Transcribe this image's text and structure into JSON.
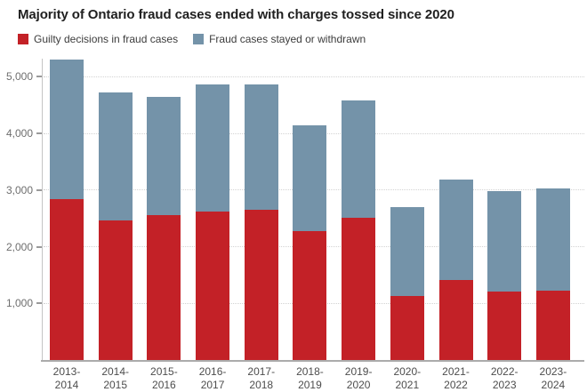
{
  "chart": {
    "title": "Majority of Ontario fraud cases ended with charges tossed since 2020",
    "legend": [
      {
        "label": "Guilty decisions in fraud cases",
        "color": "#c32127"
      },
      {
        "label": "Fraud cases stayed or withdrawn",
        "color": "#7493a9"
      }
    ]
  },
  "chart_data": {
    "type": "bar",
    "stacked": true,
    "title": "Majority of Ontario fraud cases ended with charges tossed since 2020",
    "categories": [
      "2013-2014",
      "2014-2015",
      "2015-2016",
      "2016-2017",
      "2017-2018",
      "2018-2019",
      "2019-2020",
      "2020-2021",
      "2021-2022",
      "2022-2023",
      "2023-2024"
    ],
    "x_tick_labels": [
      "2013-\n2014",
      "2014-\n2015",
      "2015-\n2016",
      "2016-\n2017",
      "2017-\n2018",
      "2018-\n2019",
      "2019-\n2020",
      "2020-\n2021",
      "2021-\n2022",
      "2022-\n2023",
      "2023-\n2024"
    ],
    "series": [
      {
        "name": "Guilty decisions in fraud cases",
        "color": "#c32127",
        "values": [
          2840,
          2470,
          2560,
          2620,
          2650,
          2270,
          2510,
          1130,
          1410,
          1210,
          1230
        ]
      },
      {
        "name": "Fraud cases stayed or withdrawn",
        "color": "#7493a9",
        "values": [
          2460,
          2250,
          2080,
          2240,
          2210,
          1870,
          2070,
          1570,
          1770,
          1780,
          1800
        ]
      }
    ],
    "totals": [
      5300,
      4720,
      4640,
      4860,
      4860,
      4140,
      4580,
      2700,
      3180,
      2990,
      3030
    ],
    "yticks": [
      {
        "value": 1000,
        "label": "1,000"
      },
      {
        "value": 2000,
        "label": "2,000"
      },
      {
        "value": 3000,
        "label": "3,000"
      },
      {
        "value": 4000,
        "label": "4,000"
      },
      {
        "value": 5000,
        "label": "5,000"
      }
    ],
    "xlabel": "",
    "ylabel": "",
    "ylim": [
      0,
      5320
    ],
    "grid": "horizontal-dotted",
    "legend_position": "top-left"
  },
  "colors": {
    "guilty_red": "#c32127",
    "stayed_blue": "#7493a9",
    "gridline": "#d2d2d2",
    "y_axis_line": "#c4c4c4",
    "baseline": "#ababab",
    "tick": "#9a9a9a",
    "title_text": "#1f1f1f",
    "axis_label_text": "#6e6e6e"
  }
}
